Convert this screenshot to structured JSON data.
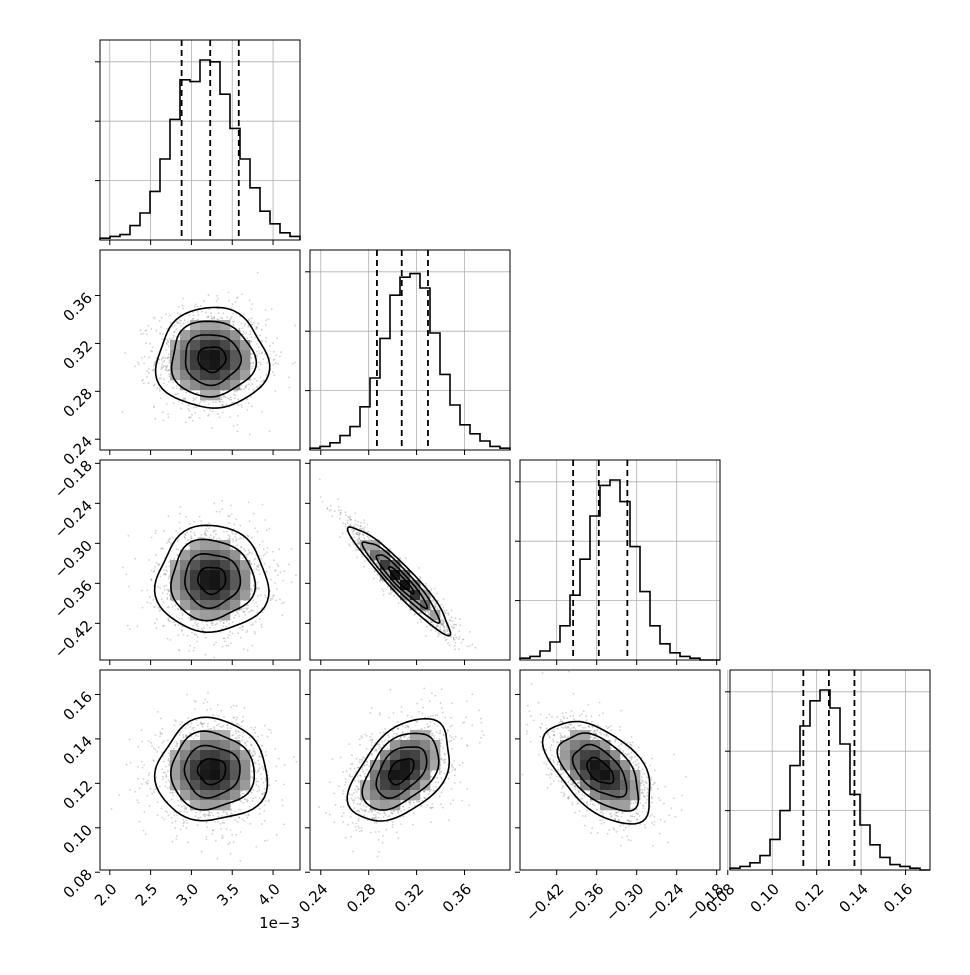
{
  "chart_data": {
    "type": "corner",
    "dimension": 4,
    "offset_text": "1e−3",
    "quantiles": [
      0.16,
      0.5,
      0.84
    ],
    "parameters": [
      {
        "index": 0,
        "axis_ticks": [
          "2.0",
          "2.5",
          "3.0",
          "3.5",
          "4.0"
        ],
        "tick_values": [
          2.0,
          2.5,
          3.0,
          3.5,
          4.0
        ],
        "range": [
          1.88,
          4.33
        ],
        "quantile_values": [
          2.88,
          3.23,
          3.58
        ],
        "hist_counts": [
          1,
          2,
          3,
          8,
          15,
          27,
          45,
          67,
          89,
          88,
          100,
          99,
          81,
          62,
          45,
          29,
          16,
          9,
          4,
          2
        ],
        "hist_max": 100
      },
      {
        "index": 1,
        "axis_ticks": [
          "0.24",
          "0.28",
          "0.32",
          "0.36"
        ],
        "tick_values": [
          0.24,
          0.28,
          0.32,
          0.36
        ],
        "range": [
          0.231,
          0.398
        ],
        "quantile_values": [
          0.2869,
          0.3076,
          0.3295
        ],
        "hist_counts": [
          1,
          2,
          4,
          8,
          13,
          24,
          40,
          62,
          86,
          96,
          98,
          90,
          65,
          42,
          25,
          14,
          9,
          5,
          2,
          1
        ],
        "hist_max": 100
      },
      {
        "index": 2,
        "axis_ticks": [
          "−0.42",
          "−0.36",
          "−0.30",
          "−0.24",
          "−0.18"
        ],
        "tick_values": [
          -0.42,
          -0.36,
          -0.3,
          -0.24,
          -0.18
        ],
        "range": [
          -0.475,
          -0.175
        ],
        "quantile_values": [
          -0.3953,
          -0.3568,
          -0.314
        ],
        "hist_counts": [
          1,
          2,
          5,
          10,
          19,
          36,
          56,
          80,
          97,
          100,
          88,
          63,
          38,
          19,
          9,
          4,
          2,
          1,
          0,
          0
        ],
        "hist_max": 100
      },
      {
        "index": 3,
        "axis_ticks": [
          "0.08",
          "0.10",
          "0.12",
          "0.14",
          "0.16"
        ],
        "tick_values": [
          0.08,
          0.1,
          0.12,
          0.14,
          0.16
        ],
        "range": [
          0.081,
          0.171
        ],
        "quantile_values": [
          0.114,
          0.1255,
          0.137
        ],
        "hist_counts": [
          1,
          2,
          4,
          8,
          17,
          33,
          58,
          80,
          94,
          100,
          90,
          70,
          42,
          25,
          14,
          7,
          3,
          2,
          1,
          0
        ],
        "hist_max": 100
      }
    ],
    "pairs": [
      {
        "x": 0,
        "y": 1,
        "mean": [
          3.25,
          0.307
        ],
        "sigma": [
          0.34,
          0.021
        ],
        "rho": 0.0
      },
      {
        "x": 0,
        "y": 2,
        "mean": [
          3.25,
          -0.355
        ],
        "sigma": [
          0.34,
          0.04
        ],
        "rho": 0.0
      },
      {
        "x": 0,
        "y": 3,
        "mean": [
          3.25,
          0.1255
        ],
        "sigma": [
          0.34,
          0.0115
        ],
        "rho": 0.0
      },
      {
        "x": 1,
        "y": 2,
        "mean": [
          0.307,
          -0.355
        ],
        "sigma": [
          0.021,
          0.04
        ],
        "rho": -0.94
      },
      {
        "x": 1,
        "y": 3,
        "mean": [
          0.307,
          0.1255
        ],
        "sigma": [
          0.021,
          0.0115
        ],
        "rho": 0.45
      },
      {
        "x": 2,
        "y": 3,
        "mean": [
          -0.355,
          0.1255
        ],
        "sigma": [
          0.04,
          0.0115
        ],
        "rho": -0.52
      }
    ],
    "contour_levels": [
      0.5,
      1.0,
      1.5,
      2.0
    ],
    "colors": {
      "line": "#000000",
      "grid": "#b0b0b0",
      "points": "#9a9a9a"
    }
  }
}
